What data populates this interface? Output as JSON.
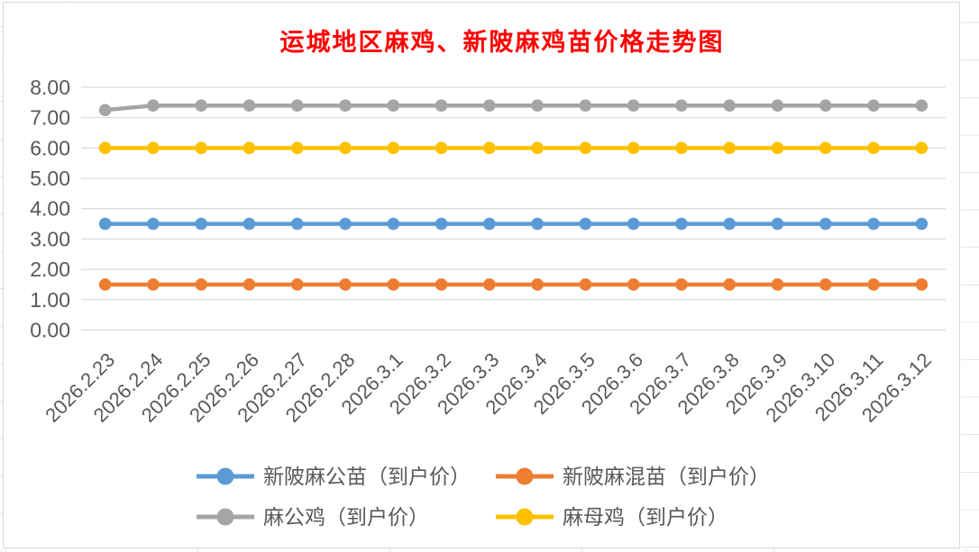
{
  "chart_data": {
    "type": "line",
    "title": "运城地区麻鸡、新陂麻鸡苗价格走势图",
    "title_color": "#FF0000",
    "categories": [
      "2026.2.23",
      "2026.2.24",
      "2026.2.25",
      "2026.2.26",
      "2026.2.27",
      "2026.2.28",
      "2026.3.1",
      "2026.3.2",
      "2026.3.3",
      "2026.3.4",
      "2026.3.5",
      "2026.3.6",
      "2026.3.7",
      "2026.3.8",
      "2026.3.9",
      "2026.3.10",
      "2026.3.11",
      "2026.3.12"
    ],
    "series": [
      {
        "name": "新陂麻公苗（到户价）",
        "color": "#5B9BD5",
        "values": [
          3.5,
          3.5,
          3.5,
          3.5,
          3.5,
          3.5,
          3.5,
          3.5,
          3.5,
          3.5,
          3.5,
          3.5,
          3.5,
          3.5,
          3.5,
          3.5,
          3.5,
          3.5
        ]
      },
      {
        "name": "新陂麻混苗（到户价）",
        "color": "#ED7D31",
        "values": [
          1.5,
          1.5,
          1.5,
          1.5,
          1.5,
          1.5,
          1.5,
          1.5,
          1.5,
          1.5,
          1.5,
          1.5,
          1.5,
          1.5,
          1.5,
          1.5,
          1.5,
          1.5
        ]
      },
      {
        "name": "麻公鸡（到户价）",
        "color": "#A5A5A5",
        "values": [
          7.25,
          7.4,
          7.4,
          7.4,
          7.4,
          7.4,
          7.4,
          7.4,
          7.4,
          7.4,
          7.4,
          7.4,
          7.4,
          7.4,
          7.4,
          7.4,
          7.4,
          7.4
        ]
      },
      {
        "name": "麻母鸡（到户价）",
        "color": "#FFC000",
        "values": [
          6.0,
          6.0,
          6.0,
          6.0,
          6.0,
          6.0,
          6.0,
          6.0,
          6.0,
          6.0,
          6.0,
          6.0,
          6.0,
          6.0,
          6.0,
          6.0,
          6.0,
          6.0
        ]
      }
    ],
    "ylim": [
      0,
      8
    ],
    "yticks": [
      "0.00",
      "1.00",
      "2.00",
      "3.00",
      "4.00",
      "5.00",
      "6.00",
      "7.00",
      "8.00"
    ],
    "grid": true,
    "gridline_color": "#D9D9D9",
    "axis_label_color": "#595959",
    "legend_position": "bottom",
    "x_label_rotation_deg": 45
  }
}
